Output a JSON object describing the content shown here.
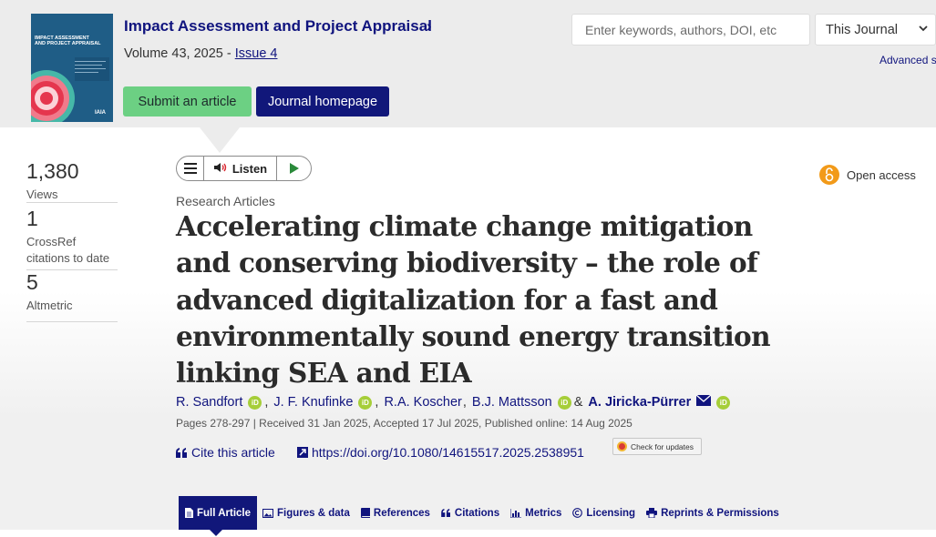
{
  "header": {
    "journal_title": "Impact Assessment and Project Appraisal",
    "journal_chevron": "›",
    "volume_text": "Volume 43, 2025 - ",
    "issue_text": "Issue 4",
    "submit_label": "Submit an article",
    "homepage_label": "Journal homepage",
    "search_placeholder": "Enter keywords, authors, DOI, etc",
    "scope_value": "This Journal",
    "advanced_label": "Advanced s",
    "cover": {
      "title_line1": "IMPACT ASSESSMENT",
      "title_line2": "AND PROJECT APPRAISAL",
      "logo_text": "IAIA"
    }
  },
  "metrics": [
    {
      "value": "1,380",
      "label_line1": "Views",
      "label_line2": ""
    },
    {
      "value": "1",
      "label_line1": "CrossRef",
      "label_line2": "citations to date"
    },
    {
      "value": "5",
      "label_line1": "Altmetric",
      "label_line2": ""
    }
  ],
  "player": {
    "listen_label": "Listen"
  },
  "open_access_label": "Open access",
  "article": {
    "type": "Research Articles",
    "title": "Accelerating climate change mitigation and conserving biodiversity – the role of advanced digitalization for a fast and environmentally sound energy transition linking SEA and EIA",
    "authors": [
      {
        "name": "R. Sandfort",
        "sep": ","
      },
      {
        "name": "J. F. Knufinke",
        "sep": ","
      },
      {
        "name": "R.A. Koscher",
        "sep": ","
      },
      {
        "name": "B.J. Mattsson",
        "sep": "&"
      },
      {
        "name": "A. Jiricka-Pürrer",
        "sep": ""
      }
    ],
    "pub_info": "Pages 278-297 | Received 31 Jan 2025, Accepted 17 Jul 2025, Published online: 14 Aug 2025",
    "cite_label": "Cite this article",
    "doi_label": "https://doi.org/10.1080/14615517.2025.2538951",
    "check_updates_label": "Check for updates"
  },
  "tabs": [
    {
      "label": "Full Article",
      "icon": "document-icon"
    },
    {
      "label": "Figures & data",
      "icon": "image-icon"
    },
    {
      "label": "References",
      "icon": "book-icon"
    },
    {
      "label": "Citations",
      "icon": "quote-icon"
    },
    {
      "label": "Metrics",
      "icon": "bar-chart-icon"
    },
    {
      "label": "Licensing",
      "icon": "copyright-icon"
    },
    {
      "label": "Reprints & Permissions",
      "icon": "print-icon"
    }
  ],
  "colors": {
    "brand_navy": "#11177a",
    "link": "#10147e",
    "submit_green": "#6cd083",
    "orcid_green": "#a6ce39",
    "open_access_orange": "#f29a19"
  }
}
